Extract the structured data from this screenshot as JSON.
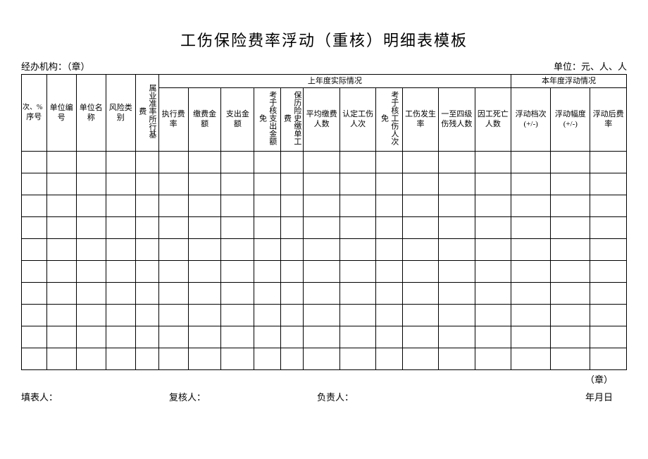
{
  "title": "工伤保险费率浮动（重核）明细表模板",
  "meta": {
    "left": "经办机构：（章）",
    "right": "单位：元、人、人"
  },
  "table": {
    "top_note": "次、%",
    "group_last_year": "上年度实际情况",
    "group_this_year": "本年度浮动情况",
    "cols": {
      "c1": "序号",
      "c2": "单位编号",
      "c3": "单位名称",
      "c4": "风险类别",
      "c5": "属业准率所行基费",
      "c6": "执行费率",
      "c7": "缴费金额",
      "c8": "支出金额",
      "c9": "考于核支出金额免",
      "c10": "保历险史缴单工费",
      "c11": "平均缴费人数",
      "c12": "认定工伤人次",
      "c13": "考于核工伤人次免",
      "c14": "工伤发生率",
      "c15": "一至四级伤残人数",
      "c16": "因工死亡人数",
      "c17": "浮动档次 (+/-)",
      "c18": "浮动幅度 (+/-)",
      "c19": "浮动后费率"
    },
    "empty_row_count": 10
  },
  "footer": {
    "stamp": "（章）",
    "date": "年月日",
    "filler": "填表人：",
    "reviewer": "复核人：",
    "manager": "负责人："
  }
}
